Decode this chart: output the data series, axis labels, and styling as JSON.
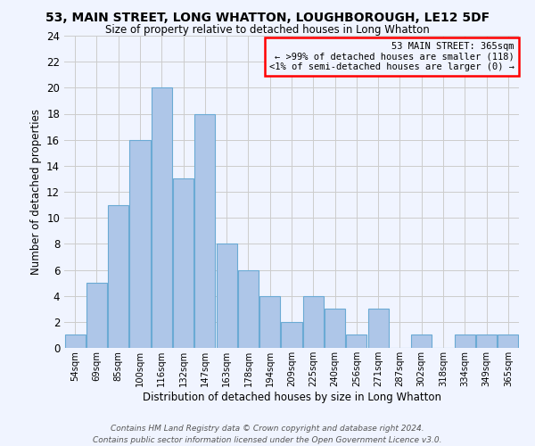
{
  "title": "53, MAIN STREET, LONG WHATTON, LOUGHBOROUGH, LE12 5DF",
  "subtitle": "Size of property relative to detached houses in Long Whatton",
  "xlabel": "Distribution of detached houses by size in Long Whatton",
  "ylabel": "Number of detached properties",
  "bar_color": "#aec6e8",
  "bar_edge_color": "#6aaad4",
  "bin_labels": [
    "54sqm",
    "69sqm",
    "85sqm",
    "100sqm",
    "116sqm",
    "132sqm",
    "147sqm",
    "163sqm",
    "178sqm",
    "194sqm",
    "209sqm",
    "225sqm",
    "240sqm",
    "256sqm",
    "271sqm",
    "287sqm",
    "302sqm",
    "318sqm",
    "334sqm",
    "349sqm",
    "365sqm"
  ],
  "values": [
    1,
    5,
    11,
    16,
    20,
    13,
    18,
    8,
    6,
    4,
    2,
    4,
    3,
    1,
    3,
    0,
    1,
    0,
    1,
    1,
    1
  ],
  "ylim": [
    0,
    24
  ],
  "yticks": [
    0,
    2,
    4,
    6,
    8,
    10,
    12,
    14,
    16,
    18,
    20,
    22,
    24
  ],
  "annotation_box_text": "53 MAIN STREET: 365sqm\n← >99% of detached houses are smaller (118)\n<1% of semi-detached houses are larger (0) →",
  "box_color": "red",
  "background_color": "#f0f4ff",
  "footer_text": "Contains HM Land Registry data © Crown copyright and database right 2024.\nContains public sector information licensed under the Open Government Licence v3.0.",
  "grid_color": "#cccccc"
}
